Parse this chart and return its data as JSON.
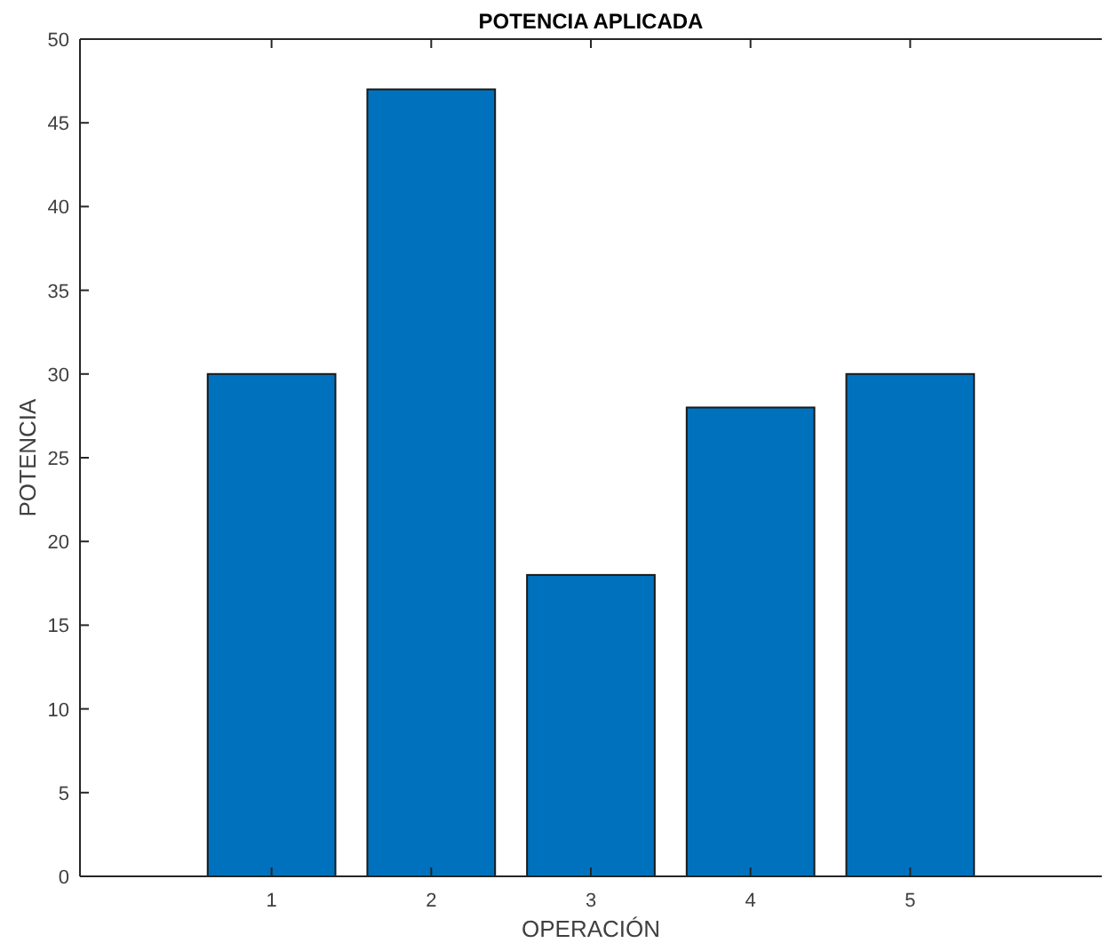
{
  "chart_data": {
    "type": "bar",
    "title": "POTENCIA APLICADA",
    "xlabel": "OPERACIÓN",
    "ylabel": "POTENCIA",
    "x": [
      1,
      2,
      3,
      4,
      5
    ],
    "values": [
      30,
      47,
      18,
      28,
      30
    ],
    "color": "#0072bd",
    "xlim": [
      -0.2,
      6.2
    ],
    "xticks": [
      1,
      2,
      3,
      4,
      5
    ],
    "ylim": [
      0,
      50
    ],
    "yticks": [
      0,
      5,
      10,
      15,
      20,
      25,
      30,
      35,
      40,
      45,
      50
    ],
    "grid": false
  }
}
